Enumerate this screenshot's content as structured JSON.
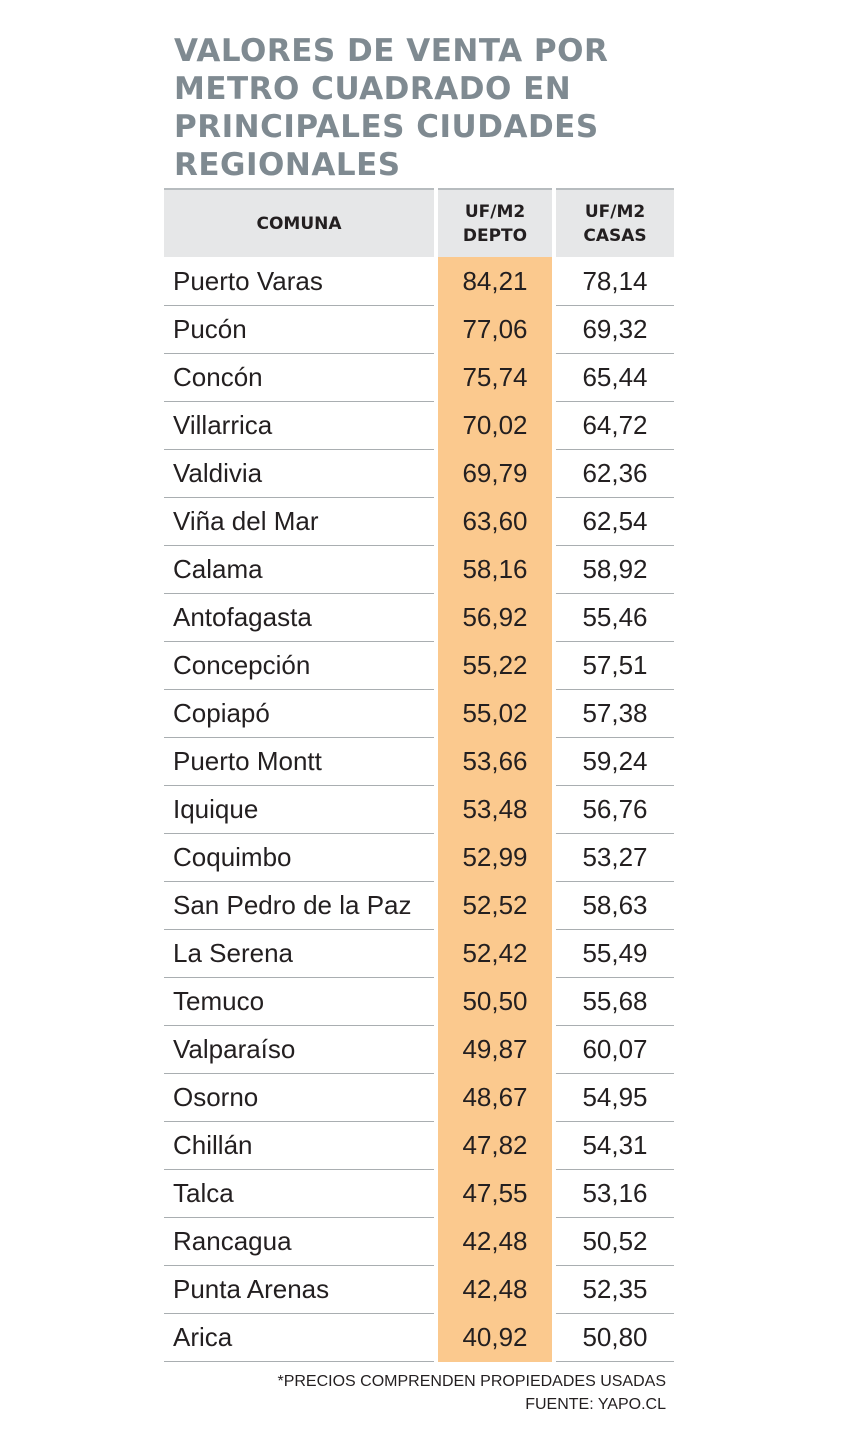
{
  "chart_data": {
    "type": "table",
    "title_lines": [
      "VALORES DE VENTA POR",
      "METRO CUADRADO EN",
      "PRINCIPALES CIUDADES",
      "REGIONALES"
    ],
    "columns": {
      "comuna": "COMUNA",
      "depto": [
        "UF/M2",
        "DEPTO"
      ],
      "casas": [
        "UF/M2",
        "CASAS"
      ]
    },
    "rows": [
      {
        "comuna": "Puerto Varas",
        "depto": "84,21",
        "casas": "78,14"
      },
      {
        "comuna": "Pucón",
        "depto": "77,06",
        "casas": "69,32"
      },
      {
        "comuna": "Concón",
        "depto": "75,74",
        "casas": "65,44"
      },
      {
        "comuna": "Villarrica",
        "depto": "70,02",
        "casas": "64,72"
      },
      {
        "comuna": "Valdivia",
        "depto": "69,79",
        "casas": "62,36"
      },
      {
        "comuna": "Viña del Mar",
        "depto": "63,60",
        "casas": "62,54"
      },
      {
        "comuna": "Calama",
        "depto": "58,16",
        "casas": "58,92"
      },
      {
        "comuna": "Antofagasta",
        "depto": "56,92",
        "casas": "55,46"
      },
      {
        "comuna": "Concepción",
        "depto": "55,22",
        "casas": "57,51"
      },
      {
        "comuna": "Copiapó",
        "depto": "55,02",
        "casas": "57,38"
      },
      {
        "comuna": "Puerto Montt",
        "depto": "53,66",
        "casas": "59,24"
      },
      {
        "comuna": "Iquique",
        "depto": "53,48",
        "casas": "56,76"
      },
      {
        "comuna": "Coquimbo",
        "depto": "52,99",
        "casas": "53,27"
      },
      {
        "comuna": "San Pedro de la Paz",
        "depto": "52,52",
        "casas": "58,63"
      },
      {
        "comuna": "La Serena",
        "depto": "52,42",
        "casas": "55,49"
      },
      {
        "comuna": "Temuco",
        "depto": "50,50",
        "casas": "55,68"
      },
      {
        "comuna": "Valparaíso",
        "depto": "49,87",
        "casas": "60,07"
      },
      {
        "comuna": "Osorno",
        "depto": "48,67",
        "casas": "54,95"
      },
      {
        "comuna": "Chillán",
        "depto": "47,82",
        "casas": "54,31"
      },
      {
        "comuna": "Talca",
        "depto": "47,55",
        "casas": "53,16"
      },
      {
        "comuna": "Rancagua",
        "depto": "42,48",
        "casas": "50,52"
      },
      {
        "comuna": "Punta Arenas",
        "depto": "42,48",
        "casas": "52,35"
      },
      {
        "comuna": "Arica",
        "depto": "40,92",
        "casas": "50,80"
      }
    ],
    "footnote": "*PRECIOS COMPRENDEN PROPIEDADES USADAS",
    "source": "FUENTE: YAPO.CL"
  },
  "colors": {
    "title": "#7f8a91",
    "header_bg": "#e6e7e8",
    "highlight_column": "#fbc98e",
    "row_divider": "#a9aeb1"
  }
}
